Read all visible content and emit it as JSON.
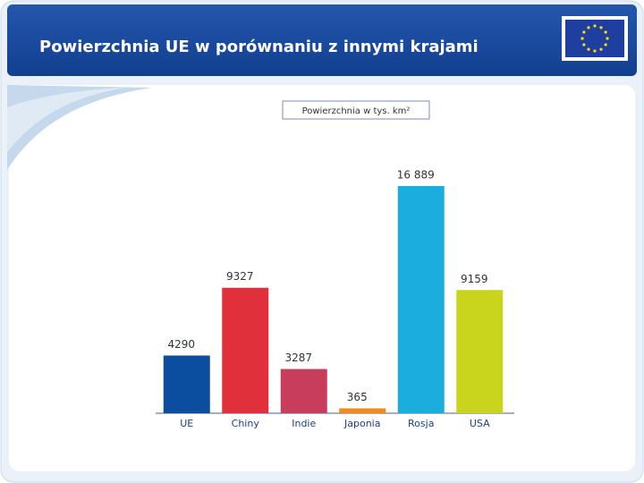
{
  "chart_data": {
    "type": "bar",
    "title": "Powierzchnia UE w porównaniu z innymi krajami",
    "subtitle": "Powierzchnia w tys. km²",
    "categories": [
      "UE",
      "Chiny",
      "Indie",
      "Japonia",
      "Rosja",
      "USA"
    ],
    "values": [
      4290,
      9327,
      3287,
      365,
      16889,
      9159
    ],
    "value_labels": [
      "4290",
      "9327",
      "3287",
      "365",
      "16 889",
      "9159"
    ],
    "colors": [
      "#0b4d9e",
      "#e0303c",
      "#c83d5c",
      "#f08c1c",
      "#1badde",
      "#c9d41d"
    ]
  }
}
